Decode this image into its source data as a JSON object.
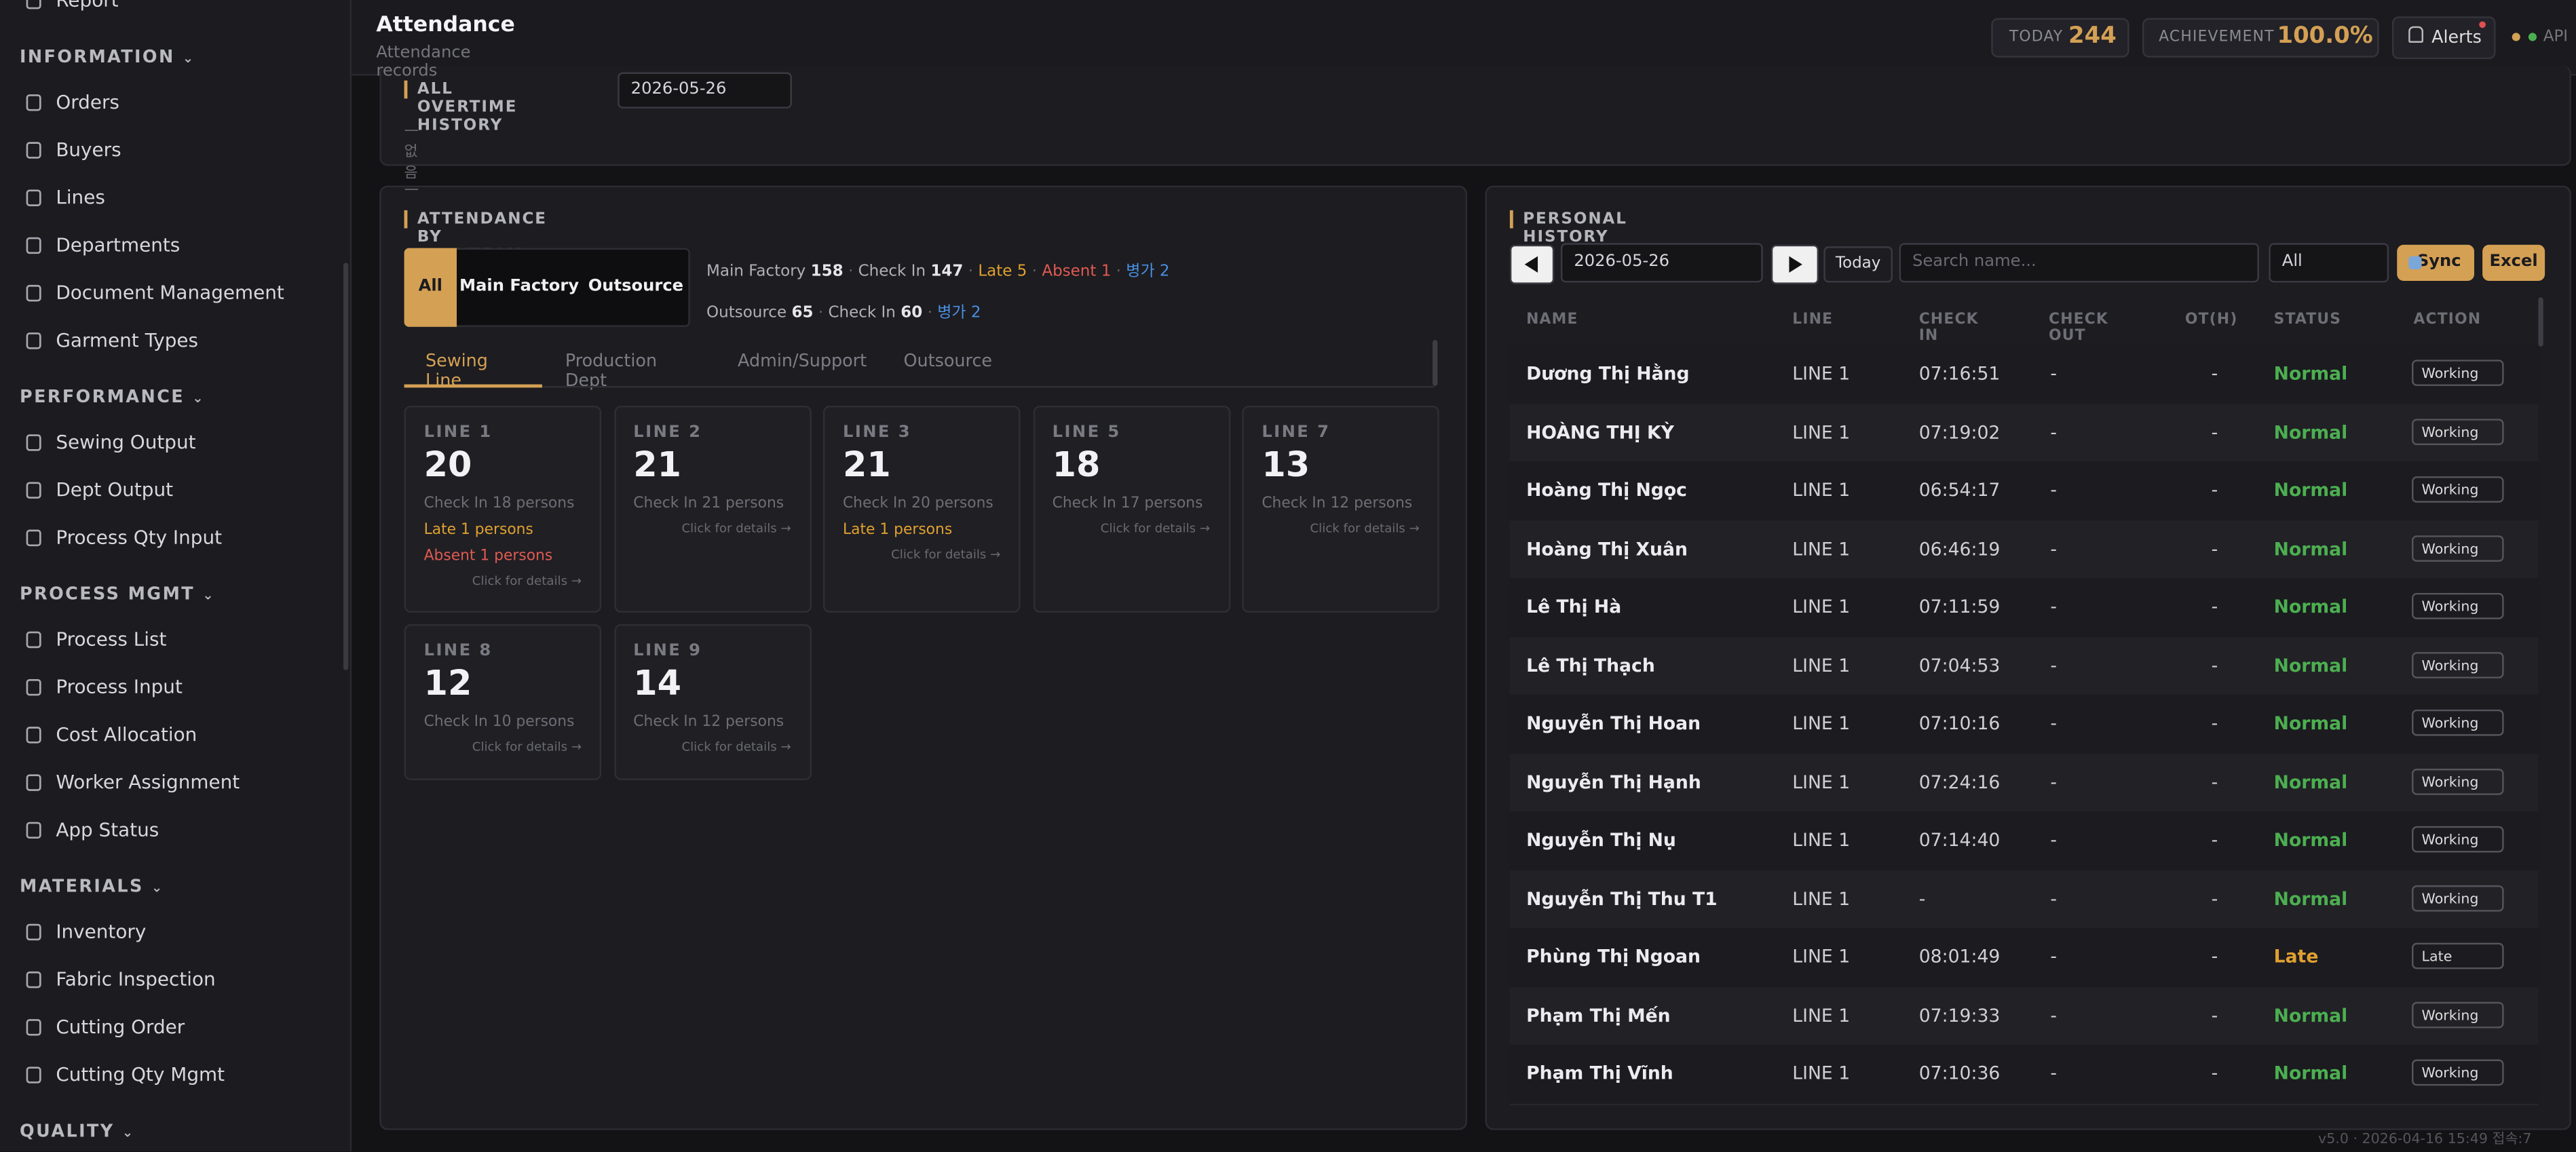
{
  "sidebar": {
    "top_item": "Report",
    "sections": [
      {
        "title": "INFORMATION",
        "items": [
          "Orders",
          "Buyers",
          "Lines",
          "Departments",
          "Document Management",
          "Garment Types"
        ]
      },
      {
        "title": "PERFORMANCE",
        "items": [
          "Sewing Output",
          "Dept Output",
          "Process Qty Input"
        ]
      },
      {
        "title": "PROCESS MGMT",
        "items": [
          "Process List",
          "Process Input",
          "Cost Allocation",
          "Worker Assignment",
          "App Status"
        ]
      },
      {
        "title": "MATERIALS",
        "items": [
          "Inventory",
          "Fabric Inspection",
          "Cutting Order",
          "Cutting Qty Mgmt"
        ]
      },
      {
        "title": "QUALITY",
        "items": []
      }
    ]
  },
  "header": {
    "title": "Attendance",
    "subtitle": "Attendance records",
    "today_label": "TODAY",
    "today_value": "244",
    "achievement_label": "ACHIEVEMENT",
    "achievement_value": "100.0%",
    "alerts": "Alerts",
    "api": "API"
  },
  "overtime": {
    "title": "ALL OVERTIME HISTORY",
    "date": "2026-05-26",
    "empty": "— 없음 —"
  },
  "attendance": {
    "title": "ATTENDANCE BY LINE/TEAM",
    "filters": [
      "All",
      "Main Factory",
      "Outsource"
    ],
    "summary": [
      [
        {
          "label": "Main Factory",
          "value": "158"
        },
        {
          "label": "Check In",
          "value": "147"
        },
        {
          "label": "Late 5",
          "tone": "late"
        },
        {
          "label": "Absent 1",
          "tone": "absent"
        },
        {
          "label": "병가 2",
          "tone": "sick"
        }
      ],
      [
        {
          "label": "Outsource",
          "value": "65"
        },
        {
          "label": "Check In",
          "value": "60"
        },
        {
          "label": "병가 2",
          "tone": "sick"
        }
      ]
    ],
    "tabs": [
      "Sewing Line",
      "Production Dept",
      "Admin/Support",
      "Outsource"
    ],
    "link": "Click for details →",
    "cards": [
      {
        "name": "LINE 1",
        "count": "20",
        "check_in": "Check In 18 persons",
        "late": "Late 1 persons",
        "absent": "Absent 1 persons"
      },
      {
        "name": "LINE 2",
        "count": "21",
        "check_in": "Check In 21 persons"
      },
      {
        "name": "LINE 3",
        "count": "21",
        "check_in": "Check In 20 persons",
        "late": "Late 1 persons"
      },
      {
        "name": "LINE 5",
        "count": "18",
        "check_in": "Check In 17 persons"
      },
      {
        "name": "LINE 7",
        "count": "13",
        "check_in": "Check In 12 persons"
      },
      {
        "name": "LINE 8",
        "count": "12",
        "check_in": "Check In 10 persons"
      },
      {
        "name": "LINE 9",
        "count": "14",
        "check_in": "Check In 12 persons"
      }
    ]
  },
  "personal": {
    "title": "PERSONAL HISTORY",
    "date": "2026-05-26",
    "today": "Today",
    "search_placeholder": "Search name...",
    "select": "All",
    "sync": "Sync",
    "excel": "Excel",
    "columns": [
      "NAME",
      "LINE",
      "CHECK IN",
      "CHECK OUT",
      "OT(H)",
      "STATUS",
      "ACTION"
    ],
    "rows": [
      [
        "Dương Thị Hằng",
        "LINE 1",
        "07:16:51",
        "-",
        "-",
        "Normal",
        "Working"
      ],
      [
        "HOÀNG THỊ KỲ",
        "LINE 1",
        "07:19:02",
        "-",
        "-",
        "Normal",
        "Working"
      ],
      [
        "Hoàng Thị Ngọc",
        "LINE 1",
        "06:54:17",
        "-",
        "-",
        "Normal",
        "Working"
      ],
      [
        "Hoàng Thị Xuân",
        "LINE 1",
        "06:46:19",
        "-",
        "-",
        "Normal",
        "Working"
      ],
      [
        "Lê Thị Hà",
        "LINE 1",
        "07:11:59",
        "-",
        "-",
        "Normal",
        "Working"
      ],
      [
        "Lê Thị Thạch",
        "LINE 1",
        "07:04:53",
        "-",
        "-",
        "Normal",
        "Working"
      ],
      [
        "Nguyễn Thị Hoan",
        "LINE 1",
        "07:10:16",
        "-",
        "-",
        "Normal",
        "Working"
      ],
      [
        "Nguyễn Thị Hạnh",
        "LINE 1",
        "07:24:16",
        "-",
        "-",
        "Normal",
        "Working"
      ],
      [
        "Nguyễn Thị Nụ",
        "LINE 1",
        "07:14:40",
        "-",
        "-",
        "Normal",
        "Working"
      ],
      [
        "Nguyễn Thị Thu T1",
        "LINE 1",
        "-",
        "-",
        "-",
        "Normal",
        "Working"
      ],
      [
        "Phùng Thị Ngoan",
        "LINE 1",
        "08:01:49",
        "-",
        "-",
        "Late",
        "Late"
      ],
      [
        "Phạm Thị Mến",
        "LINE 1",
        "07:19:33",
        "-",
        "-",
        "Normal",
        "Working"
      ],
      [
        "Phạm Thị Vĩnh",
        "LINE 1",
        "07:10:36",
        "-",
        "-",
        "Normal",
        "Working"
      ]
    ]
  },
  "footer": "v5.0 · 2026-04-16 15:49 접속:7"
}
